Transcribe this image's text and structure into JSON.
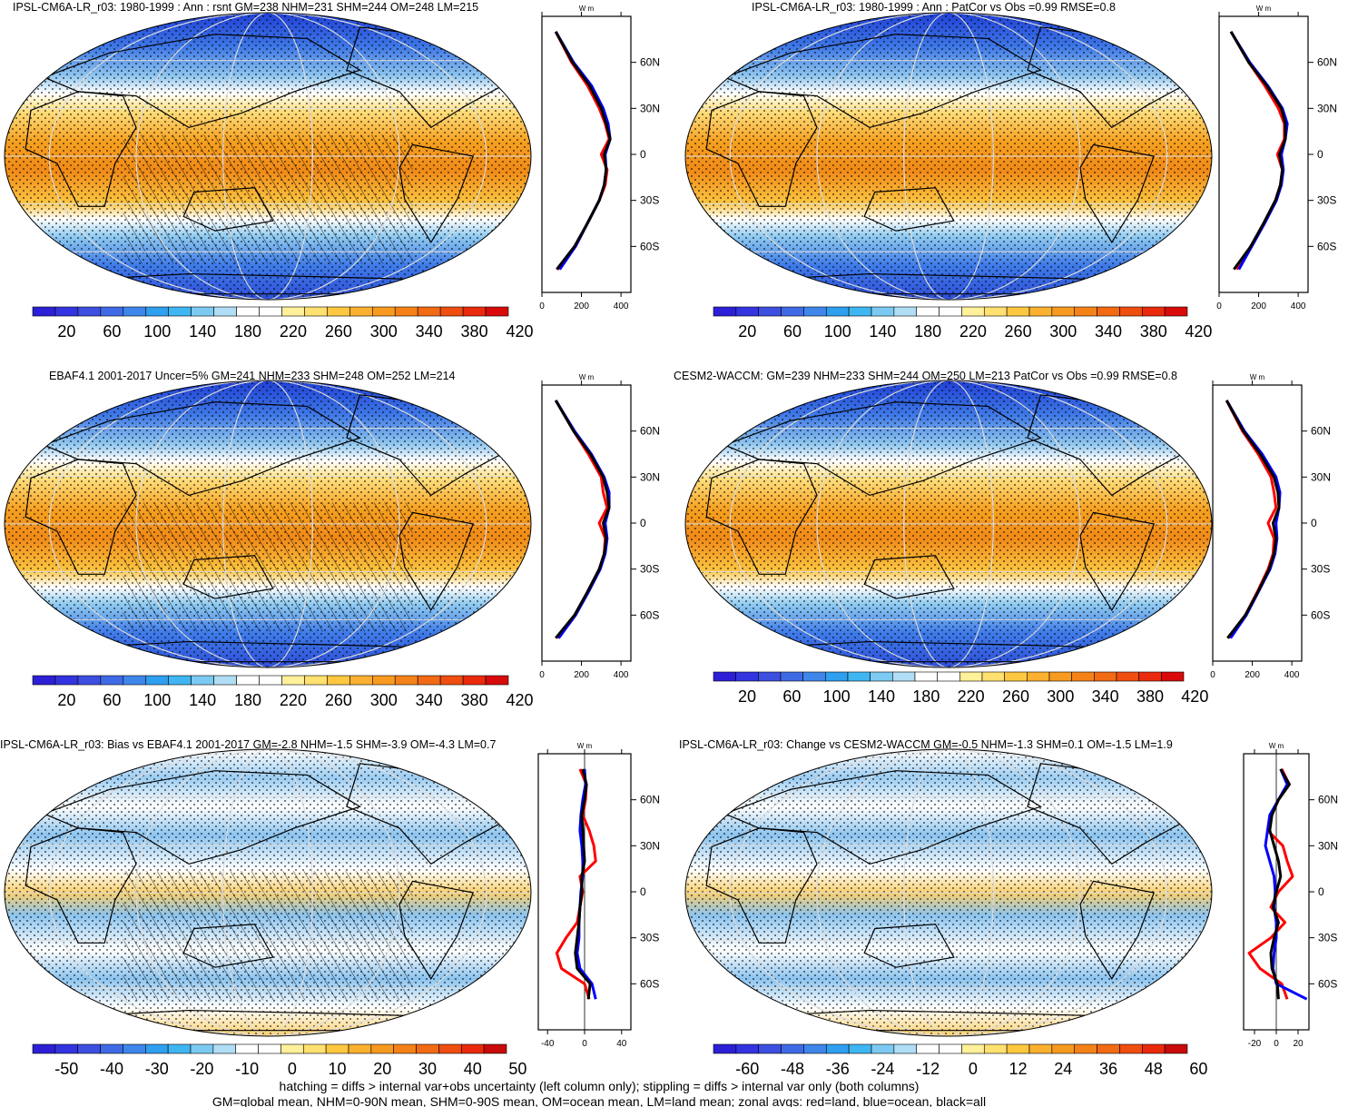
{
  "footer": {
    "line1": "hatching = diffs > internal var+obs uncertainty (left column only); stippling = diffs > internal var only (both columns)",
    "line2": "GM=global mean, NHM=0-90N mean, SHM=0-90S mean, OM=ocean mean, LM=land mean; zonal avgs: red=land, blue=ocean, black=all"
  },
  "chart_data": [
    {
      "type": "heatmap",
      "title": "IPSL-CM6A-LR_r03: 1980-1999 : Ann : rsnt GM=238 NHM=231 SHM=244 OM=248 LM=215",
      "colorbar_ticks": [
        "20",
        "60",
        "100",
        "140",
        "180",
        "220",
        "260",
        "300",
        "340",
        "380",
        "420"
      ],
      "lat_ticks": [
        "60N",
        "30N",
        "0",
        "30S",
        "60S"
      ],
      "units_label": "W m",
      "zonal_x_ticks": [
        "0",
        "200",
        "400"
      ],
      "zonal_xlim": [
        0,
        450
      ],
      "zonal_series": [
        {
          "color": "#ff0000",
          "lat": [
            80,
            60,
            45,
            30,
            20,
            10,
            0,
            -10,
            -20,
            -30,
            -45,
            -60,
            -75
          ],
          "values": [
            70,
            150,
            230,
            290,
            320,
            340,
            300,
            330,
            320,
            290,
            230,
            170,
            80
          ]
        },
        {
          "color": "#0000ff",
          "lat": [
            80,
            60,
            45,
            30,
            20,
            10,
            0,
            -10,
            -20,
            -30,
            -45,
            -60,
            -75
          ],
          "values": [
            70,
            160,
            250,
            310,
            335,
            345,
            320,
            325,
            315,
            290,
            230,
            170,
            90
          ]
        },
        {
          "color": "#000000",
          "lat": [
            80,
            60,
            45,
            30,
            20,
            10,
            0,
            -10,
            -20,
            -30,
            -45,
            -60,
            -75
          ],
          "values": [
            70,
            155,
            240,
            300,
            325,
            345,
            315,
            325,
            315,
            290,
            230,
            165,
            75
          ]
        }
      ]
    },
    {
      "type": "heatmap",
      "title": "IPSL-CM6A-LR_r03: 1980-1999 : Ann : PatCor vs Obs =0.99 RMSE=0.8",
      "colorbar_ticks": [
        "20",
        "60",
        "100",
        "140",
        "180",
        "220",
        "260",
        "300",
        "340",
        "380",
        "420"
      ],
      "lat_ticks": [
        "60N",
        "30N",
        "0",
        "30S",
        "60S"
      ],
      "units_label": "W m",
      "zonal_x_ticks": [
        "0",
        "200",
        "400"
      ],
      "zonal_xlim": [
        0,
        450
      ],
      "zonal_series": [
        {
          "color": "#ff0000",
          "lat": [
            80,
            60,
            45,
            30,
            20,
            10,
            0,
            -10,
            -20,
            -30,
            -45,
            -60,
            -75
          ],
          "values": [
            60,
            150,
            230,
            300,
            330,
            330,
            295,
            320,
            310,
            285,
            225,
            160,
            90
          ]
        },
        {
          "color": "#0000ff",
          "lat": [
            80,
            60,
            45,
            30,
            20,
            10,
            0,
            -10,
            -20,
            -30,
            -45,
            -60,
            -75
          ],
          "values": [
            60,
            155,
            245,
            320,
            345,
            335,
            315,
            325,
            315,
            290,
            230,
            165,
            100
          ]
        },
        {
          "color": "#000000",
          "lat": [
            80,
            60,
            45,
            30,
            20,
            10,
            0,
            -10,
            -20,
            -30,
            -45,
            -60,
            -75
          ],
          "values": [
            60,
            150,
            240,
            315,
            335,
            335,
            305,
            320,
            310,
            285,
            225,
            160,
            75
          ]
        }
      ]
    },
    {
      "type": "heatmap",
      "title": "EBAF4.1 2001-2017 Uncer=5% GM=241 NHM=233 SHM=248 OM=252 LM=214",
      "colorbar_ticks": [
        "20",
        "60",
        "100",
        "140",
        "180",
        "220",
        "260",
        "300",
        "340",
        "380",
        "420"
      ],
      "lat_ticks": [
        "60N",
        "30N",
        "0",
        "30S",
        "60S"
      ],
      "units_label": "W m",
      "zonal_x_ticks": [
        "0",
        "200",
        "400"
      ],
      "zonal_xlim": [
        0,
        450
      ],
      "zonal_series": [
        {
          "color": "#ff0000",
          "lat": [
            80,
            60,
            45,
            30,
            20,
            10,
            0,
            -10,
            -20,
            -30,
            -45,
            -60,
            -75
          ],
          "values": [
            70,
            160,
            235,
            300,
            310,
            330,
            290,
            320,
            315,
            290,
            230,
            170,
            80
          ]
        },
        {
          "color": "#0000ff",
          "lat": [
            80,
            60,
            45,
            30,
            20,
            10,
            0,
            -10,
            -20,
            -30,
            -45,
            -60,
            -75
          ],
          "values": [
            70,
            165,
            250,
            315,
            340,
            340,
            320,
            330,
            320,
            295,
            235,
            170,
            85
          ]
        },
        {
          "color": "#000000",
          "lat": [
            80,
            60,
            45,
            30,
            20,
            10,
            0,
            -10,
            -20,
            -30,
            -45,
            -60,
            -75
          ],
          "values": [
            70,
            160,
            245,
            310,
            330,
            340,
            310,
            325,
            315,
            290,
            230,
            165,
            70
          ]
        }
      ]
    },
    {
      "type": "heatmap",
      "title": "CESM2-WACCM: GM=239 NHM=233 SHM=244 OM=250 LM=213 PatCor vs Obs =0.99 RMSE=0.8",
      "colorbar_ticks": [
        "20",
        "60",
        "100",
        "140",
        "180",
        "220",
        "260",
        "300",
        "340",
        "380",
        "420"
      ],
      "lat_ticks": [
        "60N",
        "30N",
        "0",
        "30S",
        "60S"
      ],
      "units_label": "W m",
      "zonal_x_ticks": [
        "0",
        "200",
        "400"
      ],
      "zonal_xlim": [
        0,
        450
      ],
      "zonal_series": [
        {
          "color": "#ff0000",
          "lat": [
            80,
            60,
            45,
            30,
            20,
            10,
            0,
            -10,
            -20,
            -30,
            -45,
            -60,
            -75
          ],
          "values": [
            70,
            150,
            230,
            295,
            310,
            320,
            280,
            310,
            305,
            280,
            225,
            165,
            80
          ]
        },
        {
          "color": "#0000ff",
          "lat": [
            80,
            60,
            45,
            30,
            20,
            10,
            0,
            -10,
            -20,
            -30,
            -45,
            -60,
            -75
          ],
          "values": [
            70,
            160,
            250,
            320,
            340,
            335,
            320,
            325,
            315,
            290,
            230,
            170,
            90
          ]
        },
        {
          "color": "#000000",
          "lat": [
            80,
            60,
            45,
            30,
            20,
            10,
            0,
            -10,
            -20,
            -30,
            -45,
            -60,
            -75
          ],
          "values": [
            70,
            155,
            240,
            310,
            330,
            335,
            305,
            320,
            310,
            285,
            228,
            165,
            75
          ]
        }
      ]
    },
    {
      "type": "heatmap",
      "title": "IPSL-CM6A-LR_r03: Bias vs EBAF4.1 2001-2017 GM=-2.8 NHM=-1.5 SHM=-3.9 OM=-4.3 LM=0.7",
      "colorbar_ticks": [
        "-50",
        "-40",
        "-30",
        "-20",
        "-10",
        "0",
        "10",
        "20",
        "30",
        "40",
        "50"
      ],
      "lat_ticks": [
        "60N",
        "30N",
        "0",
        "30S",
        "60S"
      ],
      "units_label": "W m",
      "zonal_x_ticks": [
        "-40",
        "0",
        "40"
      ],
      "zonal_xlim": [
        -50,
        50
      ],
      "zonal_series": [
        {
          "color": "#ff0000",
          "lat": [
            80,
            70,
            60,
            50,
            40,
            30,
            20,
            10,
            0,
            -10,
            -20,
            -30,
            -40,
            -50,
            -60,
            -70
          ],
          "values": [
            -5,
            2,
            1,
            -2,
            5,
            10,
            12,
            -5,
            -2,
            -5,
            -8,
            -20,
            -30,
            -25,
            0,
            5
          ]
        },
        {
          "color": "#0000ff",
          "lat": [
            80,
            70,
            60,
            50,
            40,
            30,
            20,
            10,
            0,
            -10,
            -20,
            -30,
            -40,
            -50,
            -60,
            -70
          ],
          "values": [
            0,
            1,
            -2,
            -4,
            -5,
            -3,
            -2,
            -2,
            -4,
            -5,
            -6,
            -6,
            -8,
            -5,
            8,
            12
          ]
        },
        {
          "color": "#000000",
          "lat": [
            80,
            70,
            60,
            50,
            40,
            30,
            20,
            10,
            0,
            -10,
            -20,
            -30,
            -40,
            -50,
            -60,
            -70
          ],
          "values": [
            -2,
            2,
            0,
            -3,
            -2,
            -1,
            0,
            -3,
            -3,
            -5,
            -6,
            -8,
            -10,
            -8,
            6,
            4
          ]
        }
      ]
    },
    {
      "type": "heatmap",
      "title": "IPSL-CM6A-LR_r03: Change vs CESM2-WACCM GM=-0.5 NHM=-1.3 SHM=0.1 OM=-1.5 LM=1.9",
      "colorbar_ticks": [
        "-60",
        "-48",
        "-36",
        "-24",
        "-12",
        "0",
        "12",
        "24",
        "36",
        "48",
        "60"
      ],
      "lat_ticks": [
        "60N",
        "30N",
        "0",
        "30S",
        "60S"
      ],
      "units_label": "W m",
      "zonal_x_ticks": [
        "-20",
        "0",
        "20"
      ],
      "zonal_xlim": [
        -30,
        30
      ],
      "zonal_series": [
        {
          "color": "#ff0000",
          "lat": [
            80,
            70,
            60,
            50,
            40,
            30,
            20,
            10,
            0,
            -10,
            -20,
            -30,
            -40,
            -50,
            -60,
            -70
          ],
          "values": [
            5,
            12,
            2,
            -5,
            -8,
            6,
            10,
            15,
            2,
            -5,
            8,
            -5,
            -25,
            -15,
            5,
            10
          ]
        },
        {
          "color": "#0000ff",
          "lat": [
            80,
            70,
            60,
            50,
            40,
            30,
            20,
            10,
            0,
            -10,
            -20,
            -30,
            -40,
            -50,
            -60,
            -70
          ],
          "values": [
            4,
            10,
            2,
            -6,
            -8,
            -10,
            -6,
            -2,
            -1,
            -2,
            0,
            0,
            -2,
            -3,
            0,
            28
          ]
        },
        {
          "color": "#000000",
          "lat": [
            80,
            70,
            60,
            50,
            40,
            30,
            20,
            10,
            0,
            -10,
            -20,
            -30,
            -40,
            -50,
            -60,
            -70
          ],
          "values": [
            4,
            12,
            2,
            -4,
            -6,
            -2,
            2,
            4,
            0,
            -3,
            2,
            -2,
            -5,
            -4,
            1,
            2
          ]
        }
      ]
    }
  ]
}
